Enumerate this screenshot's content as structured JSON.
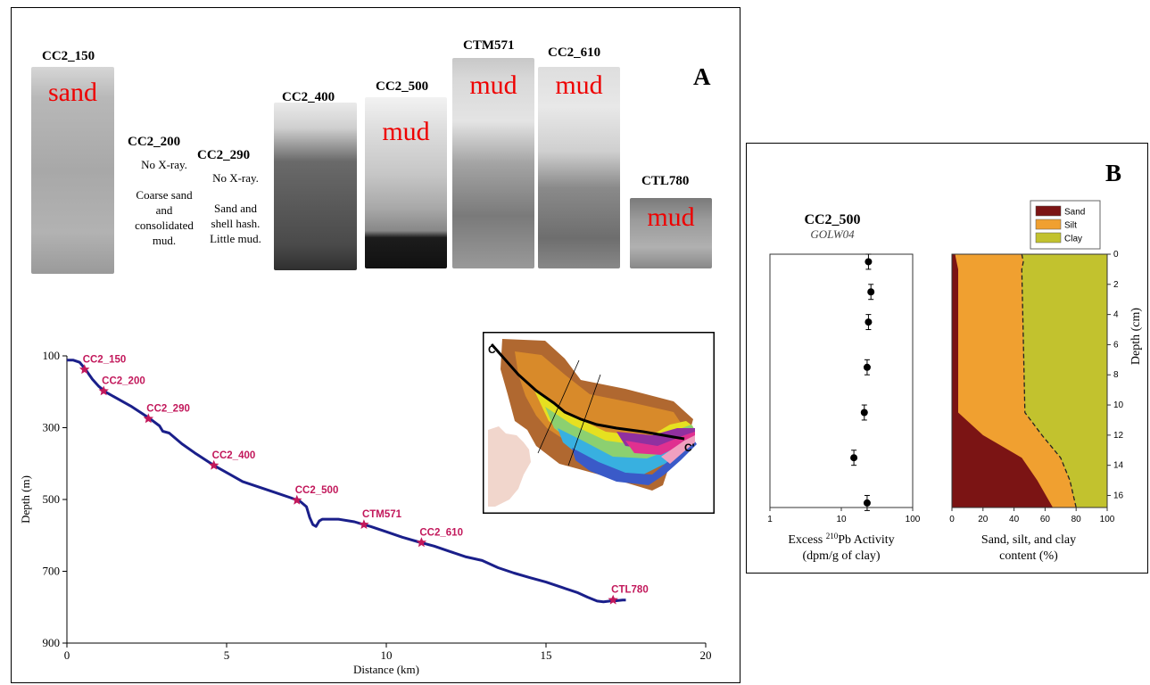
{
  "panel_a": {
    "letter": "A",
    "cores": [
      {
        "id": "CC2_150",
        "label": "sand",
        "note": ""
      },
      {
        "id": "CC2_200",
        "label": "",
        "note_lines": [
          "No X-ray.",
          "",
          "Coarse sand",
          "and",
          "consolidated",
          "mud."
        ]
      },
      {
        "id": "CC2_290",
        "label": "",
        "note_lines": [
          "No X-ray.",
          "",
          "Sand and",
          "shell hash.",
          "Little mud."
        ]
      },
      {
        "id": "CC2_400",
        "label": ""
      },
      {
        "id": "CC2_500",
        "label": "mud"
      },
      {
        "id": "CTM571",
        "label": "mud"
      },
      {
        "id": "CC2_610",
        "label": "mud"
      },
      {
        "id": "CTL780",
        "label": "mud"
      }
    ],
    "inset_map": {
      "start_label": "C",
      "end_label": "C'"
    }
  },
  "chart_data": [
    {
      "type": "line",
      "xlabel": "Distance (km)",
      "ylabel": "Depth (m)",
      "xlim": [
        0,
        20
      ],
      "ylim": [
        900,
        100
      ],
      "xticks": [
        0,
        5,
        10,
        15,
        20
      ],
      "yticks": [
        100,
        300,
        500,
        700,
        900
      ],
      "profile": {
        "x": [
          0,
          0.2,
          0.4,
          0.6,
          0.8,
          1.0,
          1.2,
          1.5,
          2.0,
          2.6,
          2.9,
          3.0,
          3.2,
          3.6,
          4.0,
          4.6,
          5.0,
          5.5,
          6.0,
          6.5,
          7.0,
          7.3,
          7.5,
          7.6,
          7.7,
          7.8,
          7.9,
          8.0,
          8.5,
          9.0,
          9.3,
          9.5,
          10.0,
          10.5,
          11.0,
          11.5,
          12.0,
          12.5,
          13.0,
          13.5,
          14.0,
          14.5,
          15.0,
          15.5,
          16.0,
          16.3,
          16.6,
          16.8,
          17.0,
          17.2,
          17.4,
          17.5
        ],
        "y": [
          112,
          112,
          118,
          140,
          165,
          185,
          200,
          215,
          240,
          275,
          295,
          310,
          315,
          345,
          370,
          405,
          425,
          450,
          465,
          480,
          495,
          505,
          520,
          550,
          570,
          575,
          560,
          555,
          555,
          562,
          570,
          575,
          590,
          605,
          618,
          630,
          645,
          660,
          670,
          690,
          705,
          718,
          730,
          745,
          760,
          772,
          783,
          785,
          783,
          782,
          780,
          780
        ]
      },
      "stations": [
        {
          "name": "CC2_150",
          "x": 0.55,
          "y": 138
        },
        {
          "name": "CC2_200",
          "x": 1.15,
          "y": 198
        },
        {
          "name": "CC2_290",
          "x": 2.55,
          "y": 275
        },
        {
          "name": "CC2_400",
          "x": 4.6,
          "y": 405
        },
        {
          "name": "CC2_500",
          "x": 7.2,
          "y": 502
        },
        {
          "name": "CTM571",
          "x": 9.3,
          "y": 570
        },
        {
          "name": "CC2_610",
          "x": 11.1,
          "y": 620
        },
        {
          "name": "CTL780",
          "x": 17.1,
          "y": 780
        }
      ]
    },
    {
      "type": "scatter",
      "title": "CC2_500",
      "subtitle": "GOLW04",
      "xlabel_prefix": "Excess ",
      "xlabel_sup": "210",
      "xlabel_suffix": "Pb Activity",
      "xlabel_line2": "(dpm/g of clay)",
      "xscale": "log",
      "xlim": [
        1,
        100
      ],
      "xticks": [
        1,
        10,
        100
      ],
      "ylim": [
        0,
        16.8
      ],
      "points": [
        {
          "x": 24,
          "y": 0.5,
          "err": 0.5
        },
        {
          "x": 26,
          "y": 2.5,
          "err": 0.5
        },
        {
          "x": 24,
          "y": 4.5,
          "err": 0.5
        },
        {
          "x": 23,
          "y": 7.5,
          "err": 0.5
        },
        {
          "x": 21,
          "y": 10.5,
          "err": 0.5
        },
        {
          "x": 15,
          "y": 13.5,
          "err": 0.5
        },
        {
          "x": 23,
          "y": 16.5,
          "err": 0.5
        }
      ]
    },
    {
      "type": "area",
      "xlabel_line1": "Sand, silt, and clay",
      "xlabel_line2": "content (%)",
      "ylabel": "Depth (cm)",
      "xlim": [
        0,
        100
      ],
      "xticks": [
        0,
        20,
        40,
        60,
        80,
        100
      ],
      "ylim": [
        0,
        16.8
      ],
      "yticks": [
        0,
        2,
        4,
        6,
        8,
        10,
        12,
        14,
        16
      ],
      "legend": {
        "position": "top",
        "entries": [
          "Sand",
          "Silt",
          "Clay"
        ]
      },
      "colors": {
        "Sand": "#7b1414",
        "Silt": "#f0a030",
        "Clay": "#c2c22e"
      },
      "depth": [
        0,
        0.5,
        1,
        10.5,
        12,
        13.5,
        15,
        16.8
      ],
      "sand_cum": [
        2,
        3,
        4,
        4,
        20,
        45,
        55,
        65
      ],
      "silt_cum": [
        45,
        46,
        45,
        47,
        58,
        70,
        76,
        80
      ]
    }
  ]
}
